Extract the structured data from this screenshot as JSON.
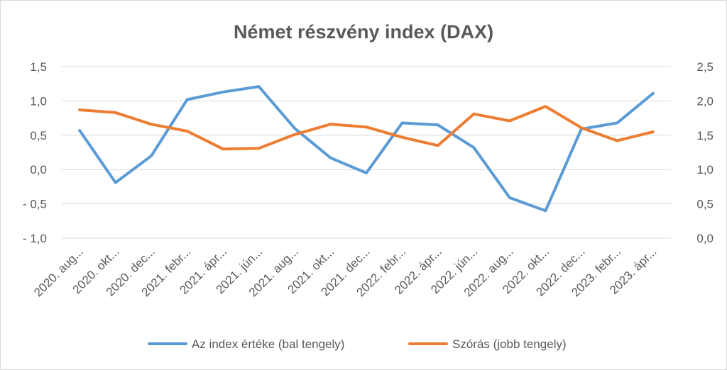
{
  "chart_data": {
    "type": "line",
    "title": "Német részvény index (DAX)",
    "categories": [
      "2020. aug...",
      "2020. okt...",
      "2020. dec...",
      "2021. febr...",
      "2021. ápr...",
      "2021. jún...",
      "2021. aug...",
      "2021. okt...",
      "2021. dec...",
      "2022. febr...",
      "2022. ápr...",
      "2022. jún...",
      "2022. aug...",
      "2022. okt...",
      "2022. dec...",
      "2023. febr...",
      "2023. ápr..."
    ],
    "y_left": {
      "ylim": [
        -1.0,
        1.5
      ],
      "ticks": [
        "- 1,0",
        "- 0,5",
        "0,0",
        "0,5",
        "1,0",
        "1,5"
      ],
      "tick_values": [
        -1.0,
        -0.5,
        0.0,
        0.5,
        1.0,
        1.5
      ]
    },
    "y_right": {
      "ylim": [
        0.0,
        2.5
      ],
      "ticks": [
        "0,0",
        "0,5",
        "1,0",
        "1,5",
        "2,0",
        "2,5"
      ],
      "tick_values": [
        0.0,
        0.5,
        1.0,
        1.5,
        2.0,
        2.5
      ]
    },
    "series": [
      {
        "name": "Az index értéke (bal tengely)",
        "axis": "left",
        "color": "#5B9BD5",
        "values": [
          0.57,
          -0.19,
          0.2,
          1.02,
          1.13,
          1.21,
          0.6,
          0.17,
          -0.05,
          0.68,
          0.65,
          0.32,
          -0.41,
          -0.6,
          0.59,
          0.68,
          1.11
        ]
      },
      {
        "name": "Szórás (jobb tengely)",
        "axis": "right",
        "color": "#ED7D31",
        "values": [
          1.87,
          1.83,
          1.66,
          1.56,
          1.3,
          1.31,
          1.51,
          1.66,
          1.62,
          1.47,
          1.35,
          1.81,
          1.71,
          1.92,
          1.61,
          1.42,
          1.55
        ]
      }
    ],
    "grid": "horizontal",
    "legend": "bottom"
  }
}
